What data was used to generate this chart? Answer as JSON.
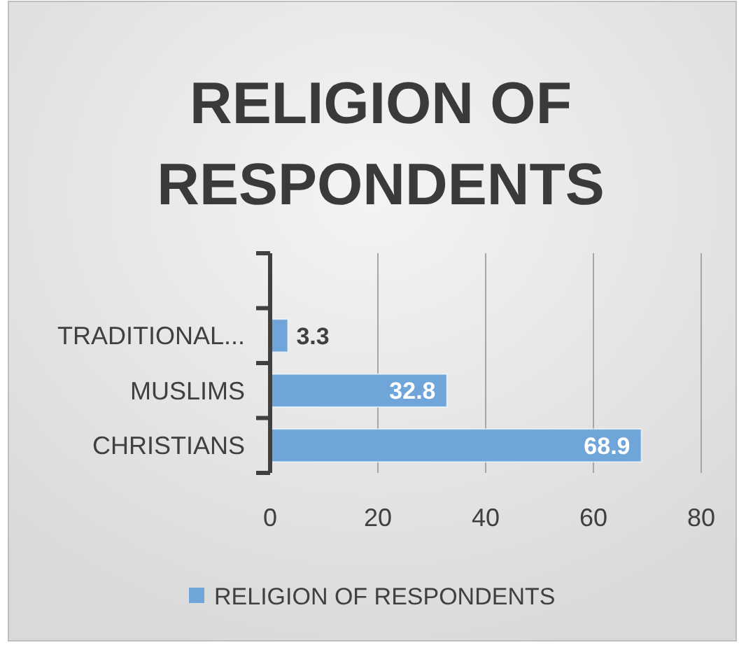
{
  "chart_data": {
    "type": "bar",
    "orientation": "horizontal",
    "title": "RELIGION OF RESPONDENTS",
    "categories": [
      null,
      "TRADITIONAL...",
      "MUSLIMS",
      "CHRISTIANS"
    ],
    "series": [
      {
        "name": "RELIGION OF RESPONDENTS",
        "color": "#6fa5d8",
        "values": [
          null,
          3.3,
          32.8,
          68.9
        ]
      }
    ],
    "xlim": [
      0,
      80
    ],
    "xticks": [
      0,
      20,
      40,
      60,
      80
    ],
    "grid": "x",
    "legend": "bottom",
    "data_labels": true
  }
}
